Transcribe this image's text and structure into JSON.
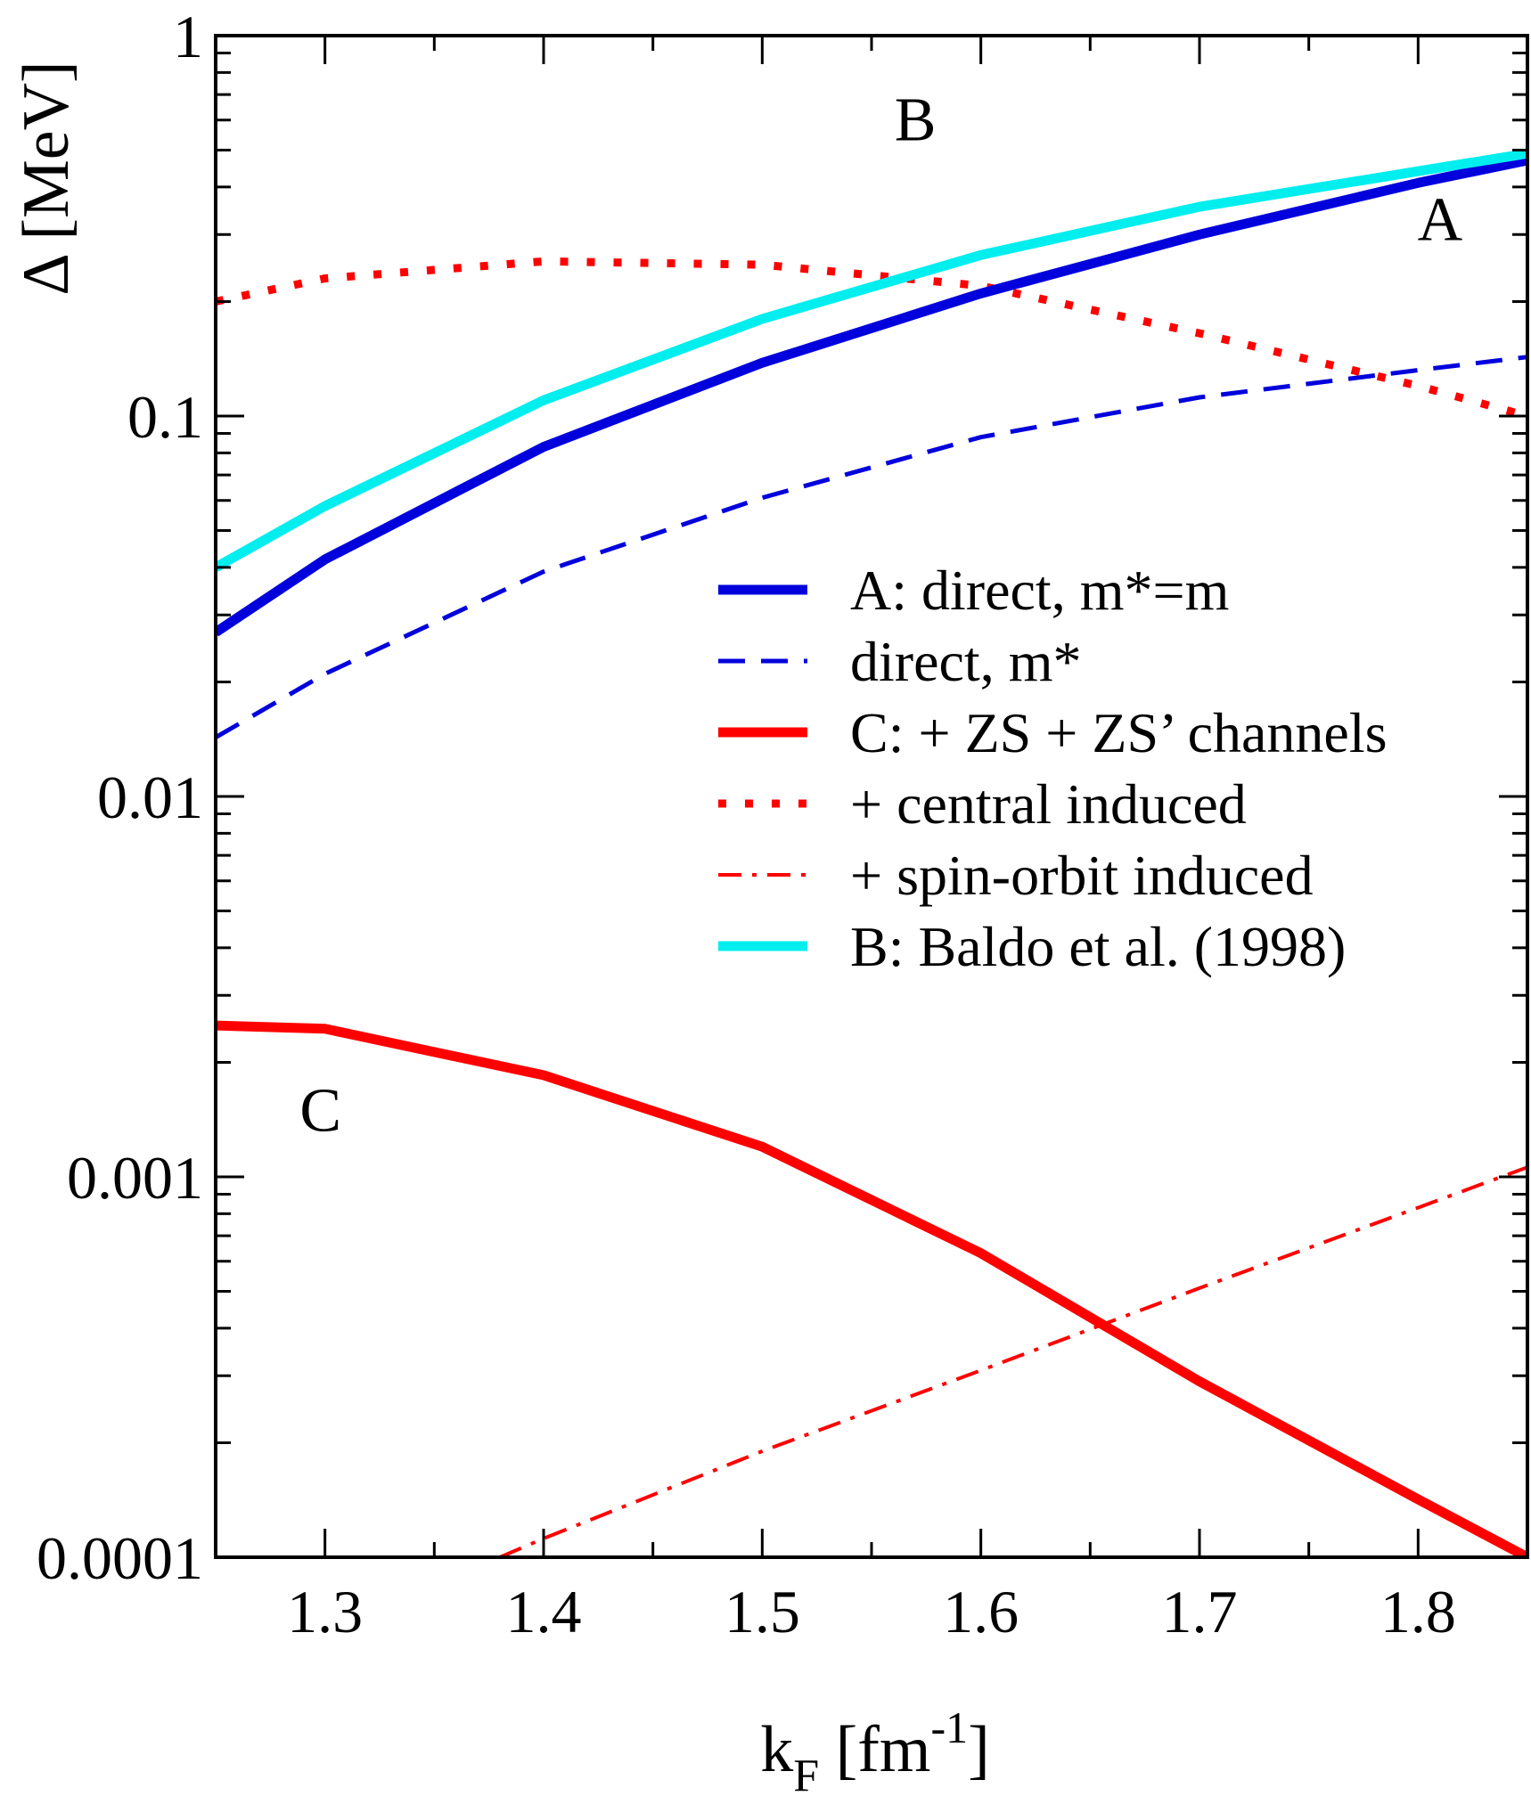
{
  "chart_data": {
    "type": "line",
    "xlabel_main": "k",
    "xlabel_sub": "F",
    "xlabel_unit_open": " [fm",
    "xlabel_sup": "-1",
    "xlabel_unit_close": "]",
    "ylabel": "Δ [MeV]",
    "xlim": [
      1.25,
      1.85
    ],
    "ylim": [
      0.0001,
      1
    ],
    "yscale": "log",
    "grid": false,
    "legend_position": "right-middle",
    "x_ticks": [
      {
        "value": 1.3,
        "label": "1.3"
      },
      {
        "value": 1.4,
        "label": "1.4"
      },
      {
        "value": 1.5,
        "label": "1.5"
      },
      {
        "value": 1.6,
        "label": "1.6"
      },
      {
        "value": 1.7,
        "label": "1.7"
      },
      {
        "value": 1.8,
        "label": "1.8"
      }
    ],
    "y_ticks": [
      {
        "value": 0.0001,
        "label": "0.0001"
      },
      {
        "value": 0.001,
        "label": "0.001"
      },
      {
        "value": 0.01,
        "label": "0.01"
      },
      {
        "value": 0.1,
        "label": "0.1"
      },
      {
        "value": 1,
        "label": "1"
      }
    ],
    "series": [
      {
        "name": "A: direct, m*=m",
        "color": "#0000dd",
        "style": "solid-thick",
        "x": [
          1.25,
          1.3,
          1.4,
          1.5,
          1.6,
          1.7,
          1.8,
          1.85
        ],
        "y": [
          0.027,
          0.042,
          0.083,
          0.138,
          0.21,
          0.3,
          0.41,
          0.47
        ]
      },
      {
        "name": "direct, m*",
        "color": "#0000dd",
        "style": "dashed",
        "x": [
          1.25,
          1.3,
          1.4,
          1.5,
          1.6,
          1.7,
          1.8,
          1.85
        ],
        "y": [
          0.0143,
          0.021,
          0.039,
          0.061,
          0.088,
          0.112,
          0.132,
          0.143
        ]
      },
      {
        "name": "C: + ZS + ZS’ channels",
        "color": "#ff0000",
        "style": "solid-thick",
        "x": [
          1.25,
          1.3,
          1.4,
          1.5,
          1.6,
          1.7,
          1.8,
          1.85
        ],
        "y": [
          0.0025,
          0.00245,
          0.00185,
          0.0012,
          0.00063,
          0.00029,
          0.000142,
          0.0001
        ]
      },
      {
        "name": "+ central induced",
        "color": "#ff0000",
        "style": "dotted",
        "x": [
          1.25,
          1.3,
          1.4,
          1.5,
          1.6,
          1.7,
          1.8,
          1.85
        ],
        "y": [
          0.2,
          0.23,
          0.255,
          0.25,
          0.22,
          0.165,
          0.12,
          0.1
        ]
      },
      {
        "name": "+ spin-orbit induced",
        "color": "#ff0000",
        "style": "dashdot",
        "x": [
          1.38,
          1.4,
          1.5,
          1.6,
          1.7,
          1.8,
          1.85
        ],
        "y": [
          0.0001,
          0.000112,
          0.00019,
          0.00031,
          0.00051,
          0.00083,
          0.00106
        ]
      },
      {
        "name": "B: Baldo et al. (1998)",
        "color": "#00eeee",
        "style": "solid-thick",
        "x": [
          1.25,
          1.3,
          1.4,
          1.5,
          1.6,
          1.7,
          1.8,
          1.85
        ],
        "y": [
          0.04,
          0.058,
          0.11,
          0.18,
          0.265,
          0.355,
          0.44,
          0.49
        ]
      }
    ],
    "annotations": [
      {
        "text": "A",
        "x": 1.81,
        "y": 0.29
      },
      {
        "text": "B",
        "x": 1.57,
        "y": 0.53
      },
      {
        "text": "C",
        "x": 1.298,
        "y": 0.00132
      }
    ]
  }
}
